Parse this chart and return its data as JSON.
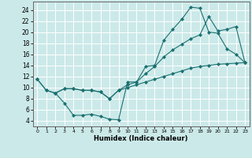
{
  "xlabel": "Humidex (Indice chaleur)",
  "background_color": "#cce9e9",
  "grid_color": "#ffffff",
  "line_color": "#1a7070",
  "xlim": [
    -0.5,
    23.5
  ],
  "ylim": [
    3.0,
    25.5
  ],
  "xticks": [
    0,
    1,
    2,
    3,
    4,
    5,
    6,
    7,
    8,
    9,
    10,
    11,
    12,
    13,
    14,
    15,
    16,
    17,
    18,
    19,
    20,
    21,
    22,
    23
  ],
  "yticks": [
    4,
    6,
    8,
    10,
    12,
    14,
    16,
    18,
    20,
    22,
    24
  ],
  "line1_x": [
    0,
    1,
    2,
    3,
    4,
    5,
    6,
    7,
    8,
    9,
    10,
    11,
    12,
    13,
    14,
    15,
    16,
    17,
    18,
    19,
    20,
    21,
    22,
    23
  ],
  "line1_y": [
    11.5,
    9.5,
    9.0,
    7.2,
    5.0,
    5.0,
    5.2,
    4.8,
    4.3,
    4.2,
    11.0,
    11.0,
    13.8,
    14.0,
    18.5,
    20.5,
    22.3,
    24.5,
    24.3,
    20.0,
    19.8,
    17.0,
    16.0,
    14.5
  ],
  "line2_x": [
    0,
    1,
    2,
    3,
    4,
    5,
    6,
    7,
    8,
    9,
    10,
    11,
    12,
    13,
    14,
    15,
    16,
    17,
    18,
    19,
    20,
    21,
    22,
    23
  ],
  "line2_y": [
    11.5,
    9.5,
    9.0,
    9.8,
    9.8,
    9.5,
    9.5,
    9.2,
    8.0,
    9.5,
    10.5,
    11.0,
    12.5,
    13.8,
    15.5,
    16.8,
    17.8,
    18.8,
    19.5,
    22.8,
    20.2,
    20.5,
    21.0,
    14.5
  ],
  "line3_x": [
    2,
    3,
    4,
    5,
    6,
    7,
    8,
    9,
    10,
    11,
    12,
    13,
    14,
    15,
    16,
    17,
    18,
    19,
    20,
    21,
    22,
    23
  ],
  "line3_y": [
    9.0,
    9.8,
    9.8,
    9.5,
    9.5,
    9.2,
    8.0,
    9.5,
    10.0,
    10.5,
    11.0,
    11.5,
    12.0,
    12.5,
    13.0,
    13.5,
    13.8,
    14.0,
    14.2,
    14.3,
    14.4,
    14.5
  ]
}
